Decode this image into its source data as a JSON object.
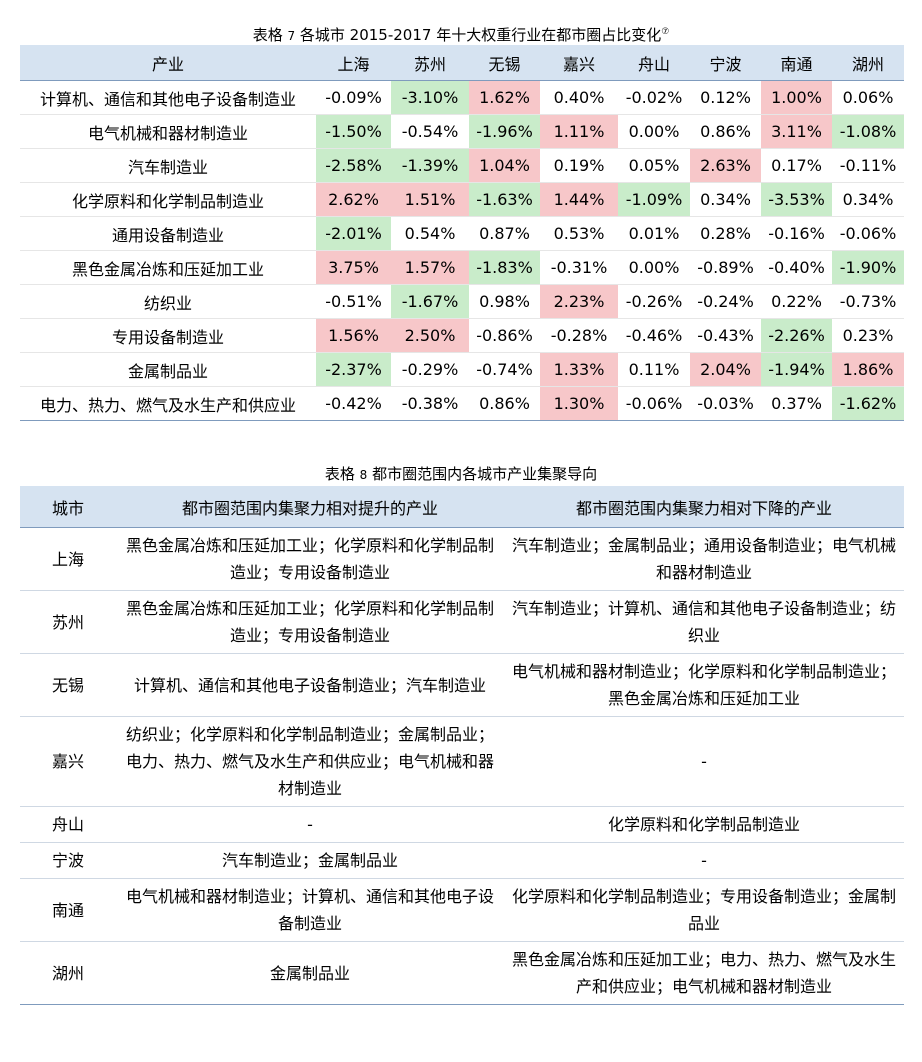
{
  "table7": {
    "caption_prefix": "表格 ",
    "caption_num": "7",
    "caption_text": " 各城市 2015-2017 年十大权重行业在都市圈占比变化",
    "caption_note": "⑦",
    "headers": [
      "产业",
      "上海",
      "苏州",
      "无锡",
      "嘉兴",
      "舟山",
      "宁波",
      "南通",
      "湖州"
    ],
    "rows": [
      {
        "industry": "计算机、通信和其他电子设备制造业",
        "values": [
          "-0.09%",
          "-3.10%",
          "1.62%",
          "0.40%",
          "-0.02%",
          "0.12%",
          "1.00%",
          "0.06%"
        ],
        "highlight": [
          "",
          "neg",
          "pos",
          "",
          "",
          "",
          "pos",
          ""
        ]
      },
      {
        "industry": "电气机械和器材制造业",
        "values": [
          "-1.50%",
          "-0.54%",
          "-1.96%",
          "1.11%",
          "0.00%",
          "0.86%",
          "3.11%",
          "-1.08%"
        ],
        "highlight": [
          "neg",
          "",
          "neg",
          "pos",
          "",
          "",
          "pos",
          "neg"
        ]
      },
      {
        "industry": "汽车制造业",
        "values": [
          "-2.58%",
          "-1.39%",
          "1.04%",
          "0.19%",
          "0.05%",
          "2.63%",
          "0.17%",
          "-0.11%"
        ],
        "highlight": [
          "neg",
          "neg",
          "pos",
          "",
          "",
          "pos",
          "",
          ""
        ]
      },
      {
        "industry": "化学原料和化学制品制造业",
        "values": [
          "2.62%",
          "1.51%",
          "-1.63%",
          "1.44%",
          "-1.09%",
          "0.34%",
          "-3.53%",
          "0.34%"
        ],
        "highlight": [
          "pos",
          "pos",
          "neg",
          "pos",
          "neg",
          "",
          "neg",
          ""
        ]
      },
      {
        "industry": "通用设备制造业",
        "values": [
          "-2.01%",
          "0.54%",
          "0.87%",
          "0.53%",
          "0.01%",
          "0.28%",
          "-0.16%",
          "-0.06%"
        ],
        "highlight": [
          "neg",
          "",
          "",
          "",
          "",
          "",
          "",
          ""
        ]
      },
      {
        "industry": "黑色金属冶炼和压延加工业",
        "values": [
          "3.75%",
          "1.57%",
          "-1.83%",
          "-0.31%",
          "0.00%",
          "-0.89%",
          "-0.40%",
          "-1.90%"
        ],
        "highlight": [
          "pos",
          "pos",
          "neg",
          "",
          "",
          "",
          "",
          "neg"
        ]
      },
      {
        "industry": "纺织业",
        "values": [
          "-0.51%",
          "-1.67%",
          "0.98%",
          "2.23%",
          "-0.26%",
          "-0.24%",
          "0.22%",
          "-0.73%"
        ],
        "highlight": [
          "",
          "neg",
          "",
          "pos",
          "",
          "",
          "",
          ""
        ]
      },
      {
        "industry": "专用设备制造业",
        "values": [
          "1.56%",
          "2.50%",
          "-0.86%",
          "-0.28%",
          "-0.46%",
          "-0.43%",
          "-2.26%",
          "0.23%"
        ],
        "highlight": [
          "pos",
          "pos",
          "",
          "",
          "",
          "",
          "neg",
          ""
        ]
      },
      {
        "industry": "金属制品业",
        "values": [
          "-2.37%",
          "-0.29%",
          "-0.74%",
          "1.33%",
          "0.11%",
          "2.04%",
          "-1.94%",
          "1.86%"
        ],
        "highlight": [
          "neg",
          "",
          "",
          "pos",
          "",
          "pos",
          "neg",
          "pos"
        ]
      },
      {
        "industry": "电力、热力、燃气及水生产和供应业",
        "values": [
          "-0.42%",
          "-0.38%",
          "0.86%",
          "1.30%",
          "-0.06%",
          "-0.03%",
          "0.37%",
          "-1.62%"
        ],
        "highlight": [
          "",
          "",
          "",
          "pos",
          "",
          "",
          "",
          "neg"
        ]
      }
    ]
  },
  "table8": {
    "caption_prefix": "表格 ",
    "caption_num": "8",
    "caption_text": " 都市圈范围内各城市产业集聚导向",
    "headers": [
      "城市",
      "都市圈范围内集聚力相对提升的产业",
      "都市圈范围内集聚力相对下降的产业"
    ],
    "rows": [
      {
        "city": "上海",
        "up": "黑色金属冶炼和压延加工业；化学原料和化学制品制造业；专用设备制造业",
        "down": "汽车制造业；金属制品业；通用设备制造业；电气机械和器材制造业"
      },
      {
        "city": "苏州",
        "up": "黑色金属冶炼和压延加工业；化学原料和化学制品制造业；专用设备制造业",
        "down": "汽车制造业；计算机、通信和其他电子设备制造业；纺织业"
      },
      {
        "city": "无锡",
        "up": "计算机、通信和其他电子设备制造业；汽车制造业",
        "down": "电气机械和器材制造业；化学原料和化学制品制造业；黑色金属冶炼和压延加工业"
      },
      {
        "city": "嘉兴",
        "up": "纺织业；化学原料和化学制品制造业；金属制品业；电力、热力、燃气及水生产和供应业；电气机械和器材制造业",
        "down": "-"
      },
      {
        "city": "舟山",
        "up": "-",
        "down": "化学原料和化学制品制造业"
      },
      {
        "city": "宁波",
        "up": "汽车制造业；金属制品业",
        "down": "-"
      },
      {
        "city": "南通",
        "up": "电气机械和器材制造业；计算机、通信和其他电子设备制造业",
        "down": "化学原料和化学制品制造业；专用设备制造业；金属制品业"
      },
      {
        "city": "湖州",
        "up": "金属制品业",
        "down": "黑色金属冶炼和压延加工业；电力、热力、燃气及水生产和供应业；电气机械和器材制造业"
      }
    ]
  }
}
